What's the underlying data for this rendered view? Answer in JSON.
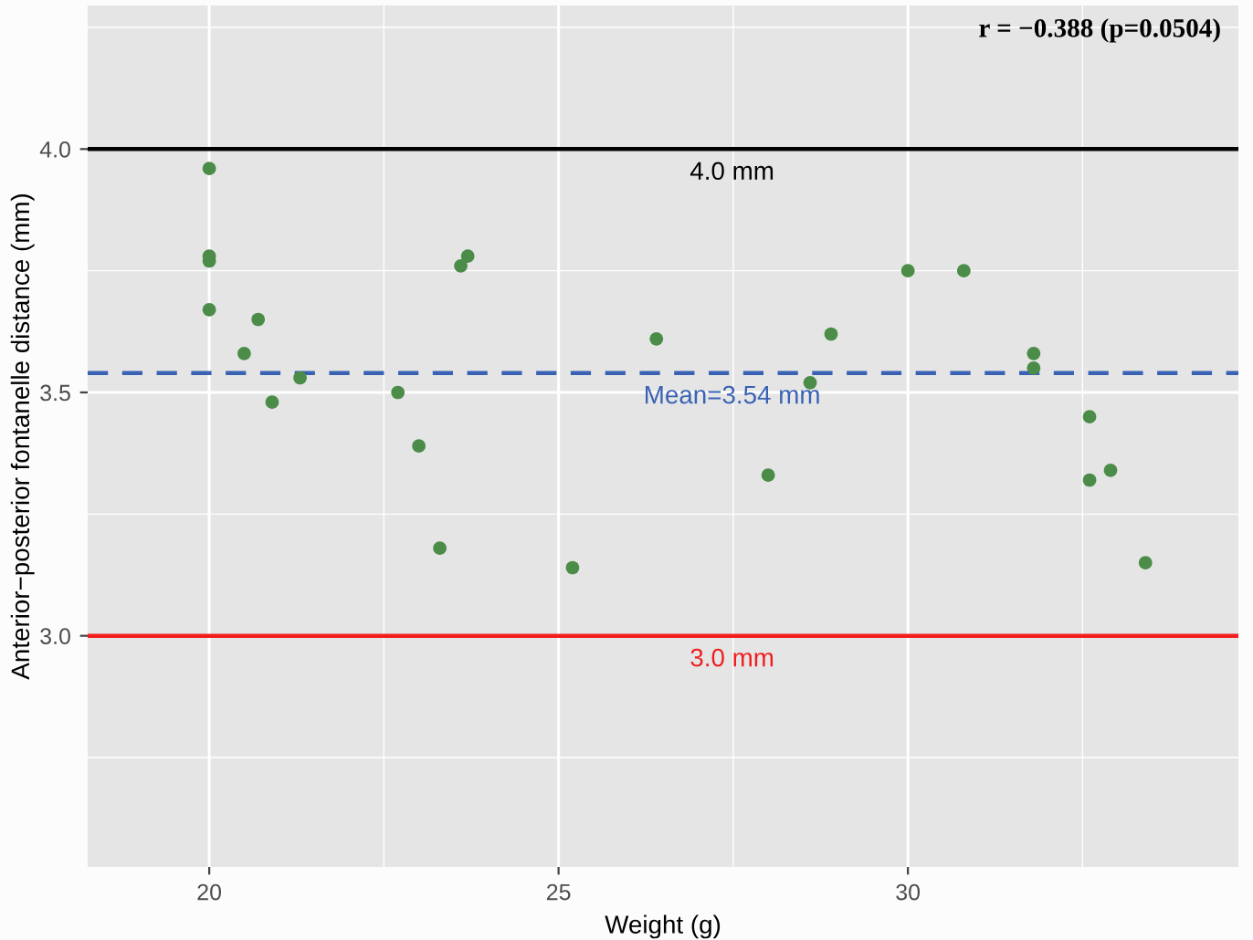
{
  "chart_data": {
    "type": "scatter",
    "xlabel": "Weight (g)",
    "ylabel": "Anterior−posterior fontanelle distance (mm)",
    "x": [
      20.0,
      20.0,
      20.0,
      20.0,
      20.7,
      20.5,
      20.9,
      21.3,
      22.7,
      23.0,
      23.3,
      23.6,
      23.7,
      25.2,
      26.4,
      28.6,
      28.9,
      28.0,
      30.0,
      30.8,
      31.8,
      31.8,
      32.6,
      32.6,
      32.9,
      33.4
    ],
    "values": [
      3.96,
      3.78,
      3.77,
      3.67,
      3.65,
      3.58,
      3.48,
      3.53,
      3.5,
      3.39,
      3.18,
      3.76,
      3.78,
      3.14,
      3.61,
      3.52,
      3.62,
      3.33,
      3.75,
      3.75,
      3.58,
      3.55,
      3.45,
      3.32,
      3.34,
      3.15
    ],
    "color": "#4a8c48",
    "marker": "circle",
    "xlim": [
      18.26,
      34.73
    ],
    "ylim": [
      2.525,
      4.295
    ],
    "xticks": [
      20,
      25,
      30
    ],
    "yticks": [
      {
        "value": 3.0,
        "label": "3.0"
      },
      {
        "value": 3.5,
        "label": "3.5"
      },
      {
        "value": 4.0,
        "label": "4.0"
      }
    ],
    "grid": true,
    "legend": false,
    "ref_lines": [
      {
        "axis": "y",
        "value": 4.0,
        "label": "4.0 mm",
        "color": "#000000",
        "line_style": "solid"
      },
      {
        "axis": "y",
        "value": 3.54,
        "label": "Mean=3.54 mm",
        "color": "#3a62b4",
        "line_style": "dashed"
      },
      {
        "axis": "y",
        "value": 3.0,
        "label": "3.0 mm",
        "color": "#f01e1e",
        "line_style": "solid"
      }
    ],
    "annotations": [
      "r = −0.388 (p=0.0504)"
    ]
  }
}
